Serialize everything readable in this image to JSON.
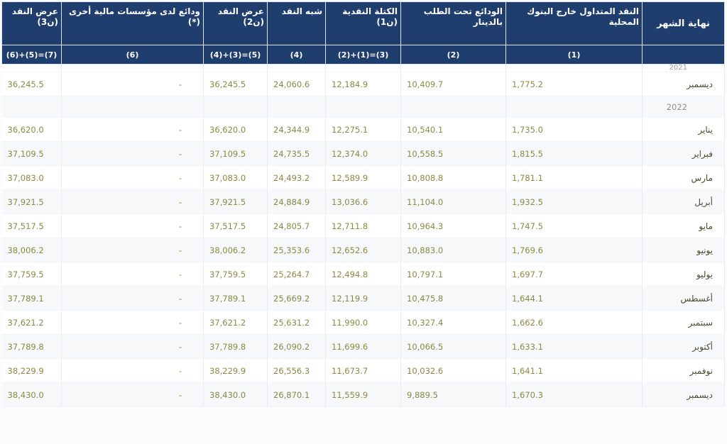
{
  "table": {
    "headers": [
      "عرض النقد (ن3)",
      "ودائع لدى مؤسسات مالية أخرى (*)",
      "عرض النقد (ن2)",
      "شبه النقد",
      "الكتلة النقدية (ن1)",
      "الودائع تحت الطلب بالدينار",
      "النقد المتداول خارج البنوك المحلية",
      "نهاية الشهر"
    ],
    "formulas": [
      "(6)+(5)=(7)",
      "(6)",
      "(4)+(3)=(5)",
      "(4)",
      "(2)+(1)=(3)",
      "(2)",
      "(1)",
      ""
    ],
    "year_2021": "2021",
    "year_2022": "2022",
    "rows_2021": [
      {
        "month": "ديسمبر",
        "c1": "1,775.2",
        "c2": "10,409.7",
        "c3": "12,184.9",
        "c4": "24,060.6",
        "c5": "36,245.5",
        "c6": "-",
        "c7": "36,245.5"
      }
    ],
    "rows_2022": [
      {
        "month": "يناير",
        "c1": "1,735.0",
        "c2": "10,540.1",
        "c3": "12,275.1",
        "c4": "24,344.9",
        "c5": "36,620.0",
        "c6": "-",
        "c7": "36,620.0"
      },
      {
        "month": "فبراير",
        "c1": "1,815.5",
        "c2": "10,558.5",
        "c3": "12,374.0",
        "c4": "24,735.5",
        "c5": "37,109.5",
        "c6": "-",
        "c7": "37,109.5"
      },
      {
        "month": "مارس",
        "c1": "1,781.1",
        "c2": "10,808.8",
        "c3": "12,589.9",
        "c4": "24,493.2",
        "c5": "37,083.0",
        "c6": "-",
        "c7": "37,083.0"
      },
      {
        "month": "أبريل",
        "c1": "1,932.5",
        "c2": "11,104.0",
        "c3": "13,036.6",
        "c4": "24,884.9",
        "c5": "37,921.5",
        "c6": "-",
        "c7": "37,921.5"
      },
      {
        "month": "مايو",
        "c1": "1,747.5",
        "c2": "10,964.3",
        "c3": "12,711.8",
        "c4": "24,805.7",
        "c5": "37,517.5",
        "c6": "-",
        "c7": "37,517.5"
      },
      {
        "month": "يونيو",
        "c1": "1,769.6",
        "c2": "10,883.0",
        "c3": "12,652.6",
        "c4": "25,353.6",
        "c5": "38,006.2",
        "c6": "-",
        "c7": "38,006.2"
      },
      {
        "month": "يوليو",
        "c1": "1,697.7",
        "c2": "10,797.1",
        "c3": "12,494.8",
        "c4": "25,264.7",
        "c5": "37,759.5",
        "c6": "-",
        "c7": "37,759.5"
      },
      {
        "month": "أغسطس",
        "c1": "1,644.1",
        "c2": "10,475.8",
        "c3": "12,119.9",
        "c4": "25,669.2",
        "c5": "37,789.1",
        "c6": "-",
        "c7": "37,789.1"
      },
      {
        "month": "سبتمبر",
        "c1": "1,662.6",
        "c2": "10,327.4",
        "c3": "11,990.0",
        "c4": "25,631.2",
        "c5": "37,621.2",
        "c6": "-",
        "c7": "37,621.2"
      },
      {
        "month": "أكتوبر",
        "c1": "1,633.1",
        "c2": "10,066.5",
        "c3": "11,699.6",
        "c4": "26,090.2",
        "c5": "37,789.8",
        "c6": "-",
        "c7": "37,789.8"
      },
      {
        "month": "نوفمبر",
        "c1": "1,641.1",
        "c2": "10,032.6",
        "c3": "11,673.7",
        "c4": "26,556.3",
        "c5": "38,229.9",
        "c6": "-",
        "c7": "38,229.9"
      },
      {
        "month": "ديسمبر",
        "c1": "1,670.3",
        "c2": "9,889.5",
        "c3": "11,559.9",
        "c4": "26,870.1",
        "c5": "38,430.0",
        "c6": "-",
        "c7": "38,430.0"
      }
    ]
  }
}
